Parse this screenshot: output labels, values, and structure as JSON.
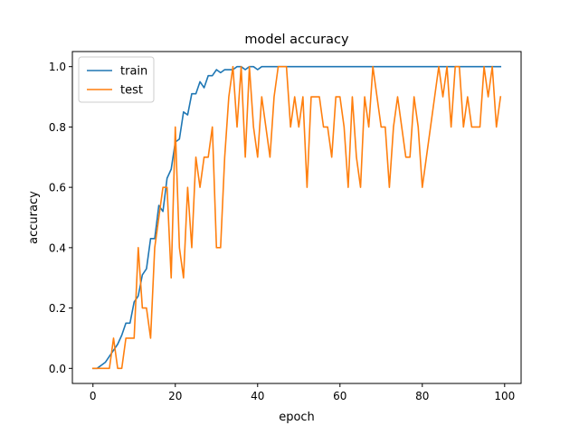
{
  "chart_data": {
    "type": "line",
    "title": "model accuracy",
    "xlabel": "epoch",
    "ylabel": "accuracy",
    "xlim": [
      -5,
      104
    ],
    "ylim": [
      -0.05,
      1.05
    ],
    "xticks": [
      0,
      20,
      40,
      60,
      80,
      100
    ],
    "xtick_labels": [
      "0",
      "20",
      "40",
      "60",
      "80",
      "100"
    ],
    "yticks": [
      0.0,
      0.2,
      0.4,
      0.6,
      0.8,
      1.0
    ],
    "ytick_labels": [
      "0.0",
      "0.2",
      "0.4",
      "0.6",
      "0.8",
      "1.0"
    ],
    "grid": false,
    "legend": {
      "placement": "upper-left",
      "entries": [
        "train",
        "test"
      ]
    },
    "x": [
      0,
      1,
      2,
      3,
      4,
      5,
      6,
      7,
      8,
      9,
      10,
      11,
      12,
      13,
      14,
      15,
      16,
      17,
      18,
      19,
      20,
      21,
      22,
      23,
      24,
      25,
      26,
      27,
      28,
      29,
      30,
      31,
      32,
      33,
      34,
      35,
      36,
      37,
      38,
      39,
      40,
      41,
      42,
      43,
      44,
      45,
      46,
      47,
      48,
      49,
      50,
      51,
      52,
      53,
      54,
      55,
      56,
      57,
      58,
      59,
      60,
      61,
      62,
      63,
      64,
      65,
      66,
      67,
      68,
      69,
      70,
      71,
      72,
      73,
      74,
      75,
      76,
      77,
      78,
      79,
      80,
      81,
      82,
      83,
      84,
      85,
      86,
      87,
      88,
      89,
      90,
      91,
      92,
      93,
      94,
      95,
      96,
      97,
      98,
      99
    ],
    "series": [
      {
        "name": "train",
        "color": "#1f77b4",
        "values": [
          0.0,
          0.0,
          0.01,
          0.02,
          0.04,
          0.06,
          0.08,
          0.11,
          0.15,
          0.15,
          0.22,
          0.24,
          0.31,
          0.33,
          0.43,
          0.43,
          0.54,
          0.52,
          0.63,
          0.66,
          0.75,
          0.76,
          0.85,
          0.84,
          0.91,
          0.91,
          0.95,
          0.93,
          0.97,
          0.97,
          0.99,
          0.98,
          0.99,
          0.99,
          0.99,
          1.0,
          1.0,
          0.99,
          1.0,
          1.0,
          0.99,
          1.0,
          1.0,
          1.0,
          1.0,
          1.0,
          1.0,
          1.0,
          1.0,
          1.0,
          1.0,
          1.0,
          1.0,
          1.0,
          1.0,
          1.0,
          1.0,
          1.0,
          1.0,
          1.0,
          1.0,
          1.0,
          1.0,
          1.0,
          1.0,
          1.0,
          1.0,
          1.0,
          1.0,
          1.0,
          1.0,
          1.0,
          1.0,
          1.0,
          1.0,
          1.0,
          1.0,
          1.0,
          1.0,
          1.0,
          1.0,
          1.0,
          1.0,
          1.0,
          1.0,
          1.0,
          1.0,
          1.0,
          1.0,
          1.0,
          1.0,
          1.0,
          1.0,
          1.0,
          1.0,
          1.0,
          1.0,
          1.0,
          1.0,
          1.0
        ]
      },
      {
        "name": "test",
        "color": "#ff7f0e",
        "values": [
          0.0,
          0.0,
          0.0,
          0.0,
          0.0,
          0.1,
          0.0,
          0.0,
          0.1,
          0.1,
          0.1,
          0.4,
          0.2,
          0.2,
          0.1,
          0.4,
          0.5,
          0.6,
          0.6,
          0.3,
          0.8,
          0.4,
          0.3,
          0.6,
          0.4,
          0.7,
          0.6,
          0.7,
          0.7,
          0.8,
          0.4,
          0.4,
          0.7,
          0.9,
          1.0,
          0.8,
          1.0,
          0.7,
          1.0,
          0.8,
          0.7,
          0.9,
          0.8,
          0.7,
          0.9,
          1.0,
          1.0,
          1.0,
          0.8,
          0.9,
          0.8,
          0.9,
          0.6,
          0.9,
          0.9,
          0.9,
          0.8,
          0.8,
          0.7,
          0.9,
          0.9,
          0.8,
          0.6,
          0.9,
          0.7,
          0.6,
          0.9,
          0.8,
          1.0,
          0.9,
          0.8,
          0.8,
          0.6,
          0.8,
          0.9,
          0.8,
          0.7,
          0.7,
          0.9,
          0.8,
          0.6,
          0.7,
          0.8,
          0.9,
          1.0,
          0.9,
          1.0,
          0.8,
          1.0,
          1.0,
          0.8,
          0.9,
          0.8,
          0.8,
          0.8,
          1.0,
          0.9,
          1.0,
          0.8,
          0.9
        ]
      }
    ]
  }
}
